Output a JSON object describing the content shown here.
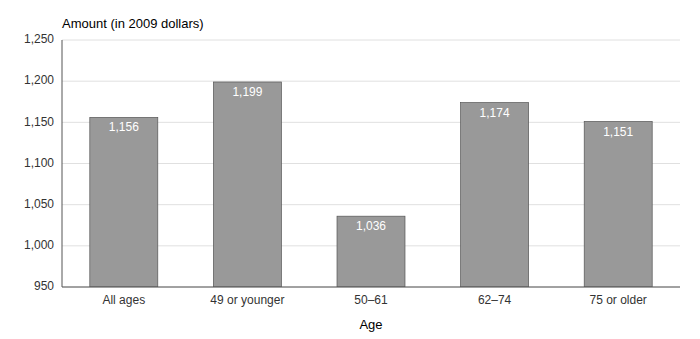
{
  "chart_data": {
    "type": "bar",
    "categories": [
      "All ages",
      "49 or younger",
      "50–61",
      "62–74",
      "75 or older"
    ],
    "values": [
      1156,
      1199,
      1036,
      1174,
      1151
    ],
    "value_labels": [
      "1,156",
      "1,199",
      "1,036",
      "1,174",
      "1,151"
    ],
    "data_labels": true,
    "color": "#999999",
    "xlabel": "Age",
    "ylabel": "Amount (in 2009 dollars)",
    "ylim": [
      950,
      1250
    ],
    "yticks": [
      950,
      {
        "value": 1000,
        "label": "1,000"
      },
      {
        "value": 1050,
        "label": "1,050"
      },
      {
        "value": 1100,
        "label": "1,100"
      },
      {
        "value": 1150,
        "label": "1,150"
      },
      {
        "value": 1200,
        "label": "1,200"
      },
      {
        "value": 1250,
        "label": "1,250"
      }
    ],
    "grid": true
  }
}
